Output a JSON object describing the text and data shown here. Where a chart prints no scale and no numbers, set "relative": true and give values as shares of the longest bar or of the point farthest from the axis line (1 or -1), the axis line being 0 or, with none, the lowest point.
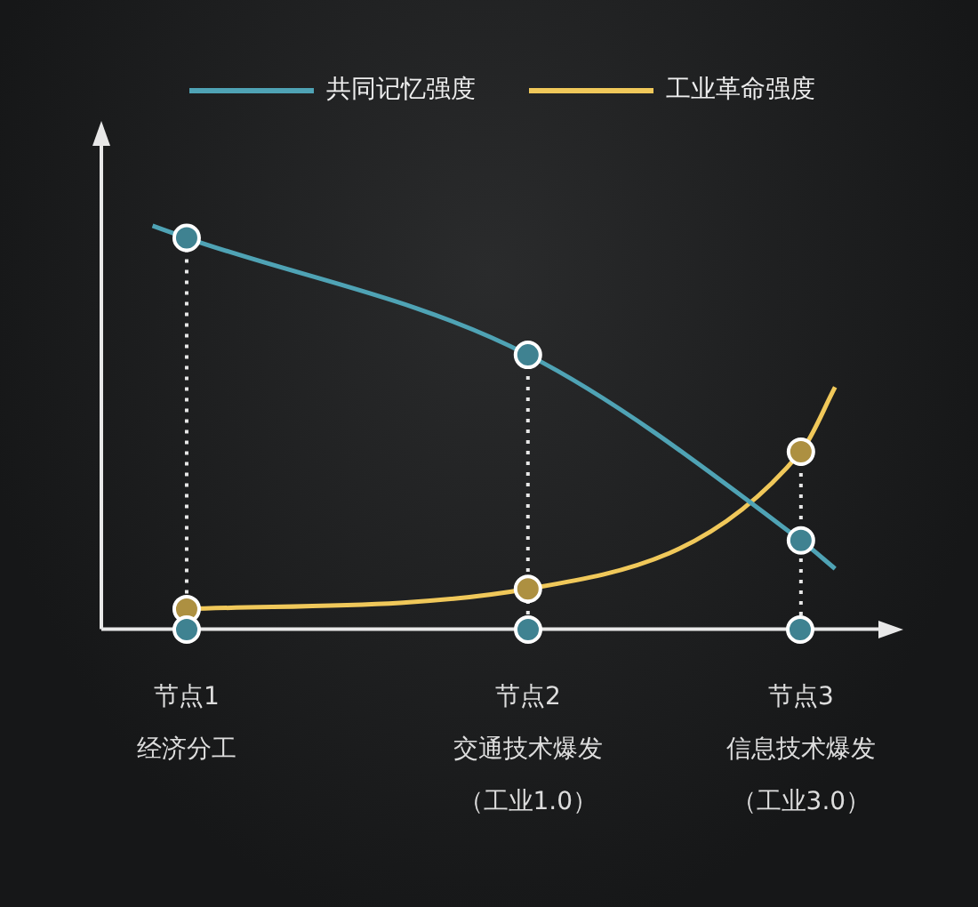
{
  "chart_data": {
    "type": "line",
    "relative": true,
    "legend": "top",
    "marker": "circle",
    "line_style": "solid",
    "grid": "x",
    "categories": [
      null,
      "节点1\n经济分工",
      null,
      null,
      null,
      null,
      null,
      null,
      null,
      null,
      null,
      "节点2\n交通技术爆发（工业1.0）",
      null,
      null,
      null,
      null,
      null,
      null,
      null,
      "节点3\n信息技术爆发（工业3.0）",
      null
    ],
    "series": [
      {
        "name": "共同记忆强度",
        "color": "#4fa3b5",
        "values": [
          1.0,
          0.97,
          null,
          null,
          null,
          null,
          null,
          null,
          null,
          null,
          null,
          0.68,
          null,
          null,
          null,
          null,
          null,
          null,
          null,
          0.22,
          0.15
        ]
      },
      {
        "name": "工业革命强度",
        "color": "#f0c85a",
        "values": [
          null,
          0.05,
          null,
          null,
          null,
          null,
          null,
          null,
          null,
          null,
          null,
          0.1,
          null,
          null,
          null,
          null,
          null,
          null,
          null,
          0.44,
          0.6
        ]
      }
    ]
  }
}
